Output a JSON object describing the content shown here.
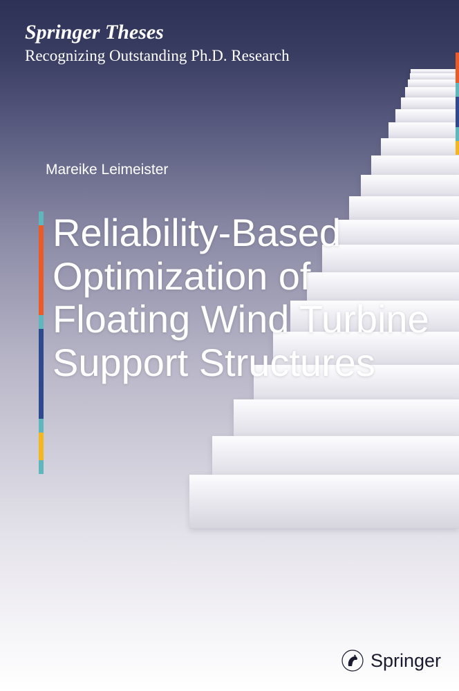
{
  "series": {
    "title": "Springer Theses",
    "subtitle": "Recognizing Outstanding Ph.D. Research"
  },
  "author": "Mareike Leimeister",
  "title": "Reliability-Based Optimization of Floating Wind Turbine Support Structures",
  "publisher": "Springer",
  "colors": {
    "accent_orange": "#eb5b28",
    "accent_teal": "#5fb6bd",
    "accent_blue": "#2e4a8f",
    "accent_yellow": "#f3b81f",
    "text_light": "#ffffff",
    "text_dark": "#1a1a2e"
  },
  "background": {
    "gradient_stops": [
      "#2d3155",
      "#3a3d62",
      "#575a7e",
      "#8e8da8",
      "#bdbbcb",
      "#e8e6ed",
      "#ffffff"
    ]
  },
  "accent_right": {
    "segments": [
      {
        "color": "#eb5b28",
        "height": 44
      },
      {
        "color": "#5fb6bd",
        "height": 20
      },
      {
        "color": "#2e4a8f",
        "height": 44
      },
      {
        "color": "#5fb6bd",
        "height": 20
      },
      {
        "color": "#f3b81f",
        "height": 20
      }
    ]
  },
  "accent_left": {
    "segments": [
      {
        "color": "#5fb6bd",
        "height": 20
      },
      {
        "color": "#eb5b28",
        "height": 130
      },
      {
        "color": "#5fb6bd",
        "height": 20
      },
      {
        "color": "#2e4a8f",
        "height": 130
      },
      {
        "color": "#5fb6bd",
        "height": 20
      },
      {
        "color": "#f3b81f",
        "height": 40
      },
      {
        "color": "#5fb6bd",
        "height": 20
      }
    ]
  },
  "stairs": {
    "count": 20,
    "top_start": 0,
    "base_height": 60,
    "base_width": 380
  },
  "typography": {
    "series_title_size": 30,
    "series_subtitle_size": 23,
    "author_size": 21,
    "main_title_size": 56,
    "publisher_size": 27
  }
}
